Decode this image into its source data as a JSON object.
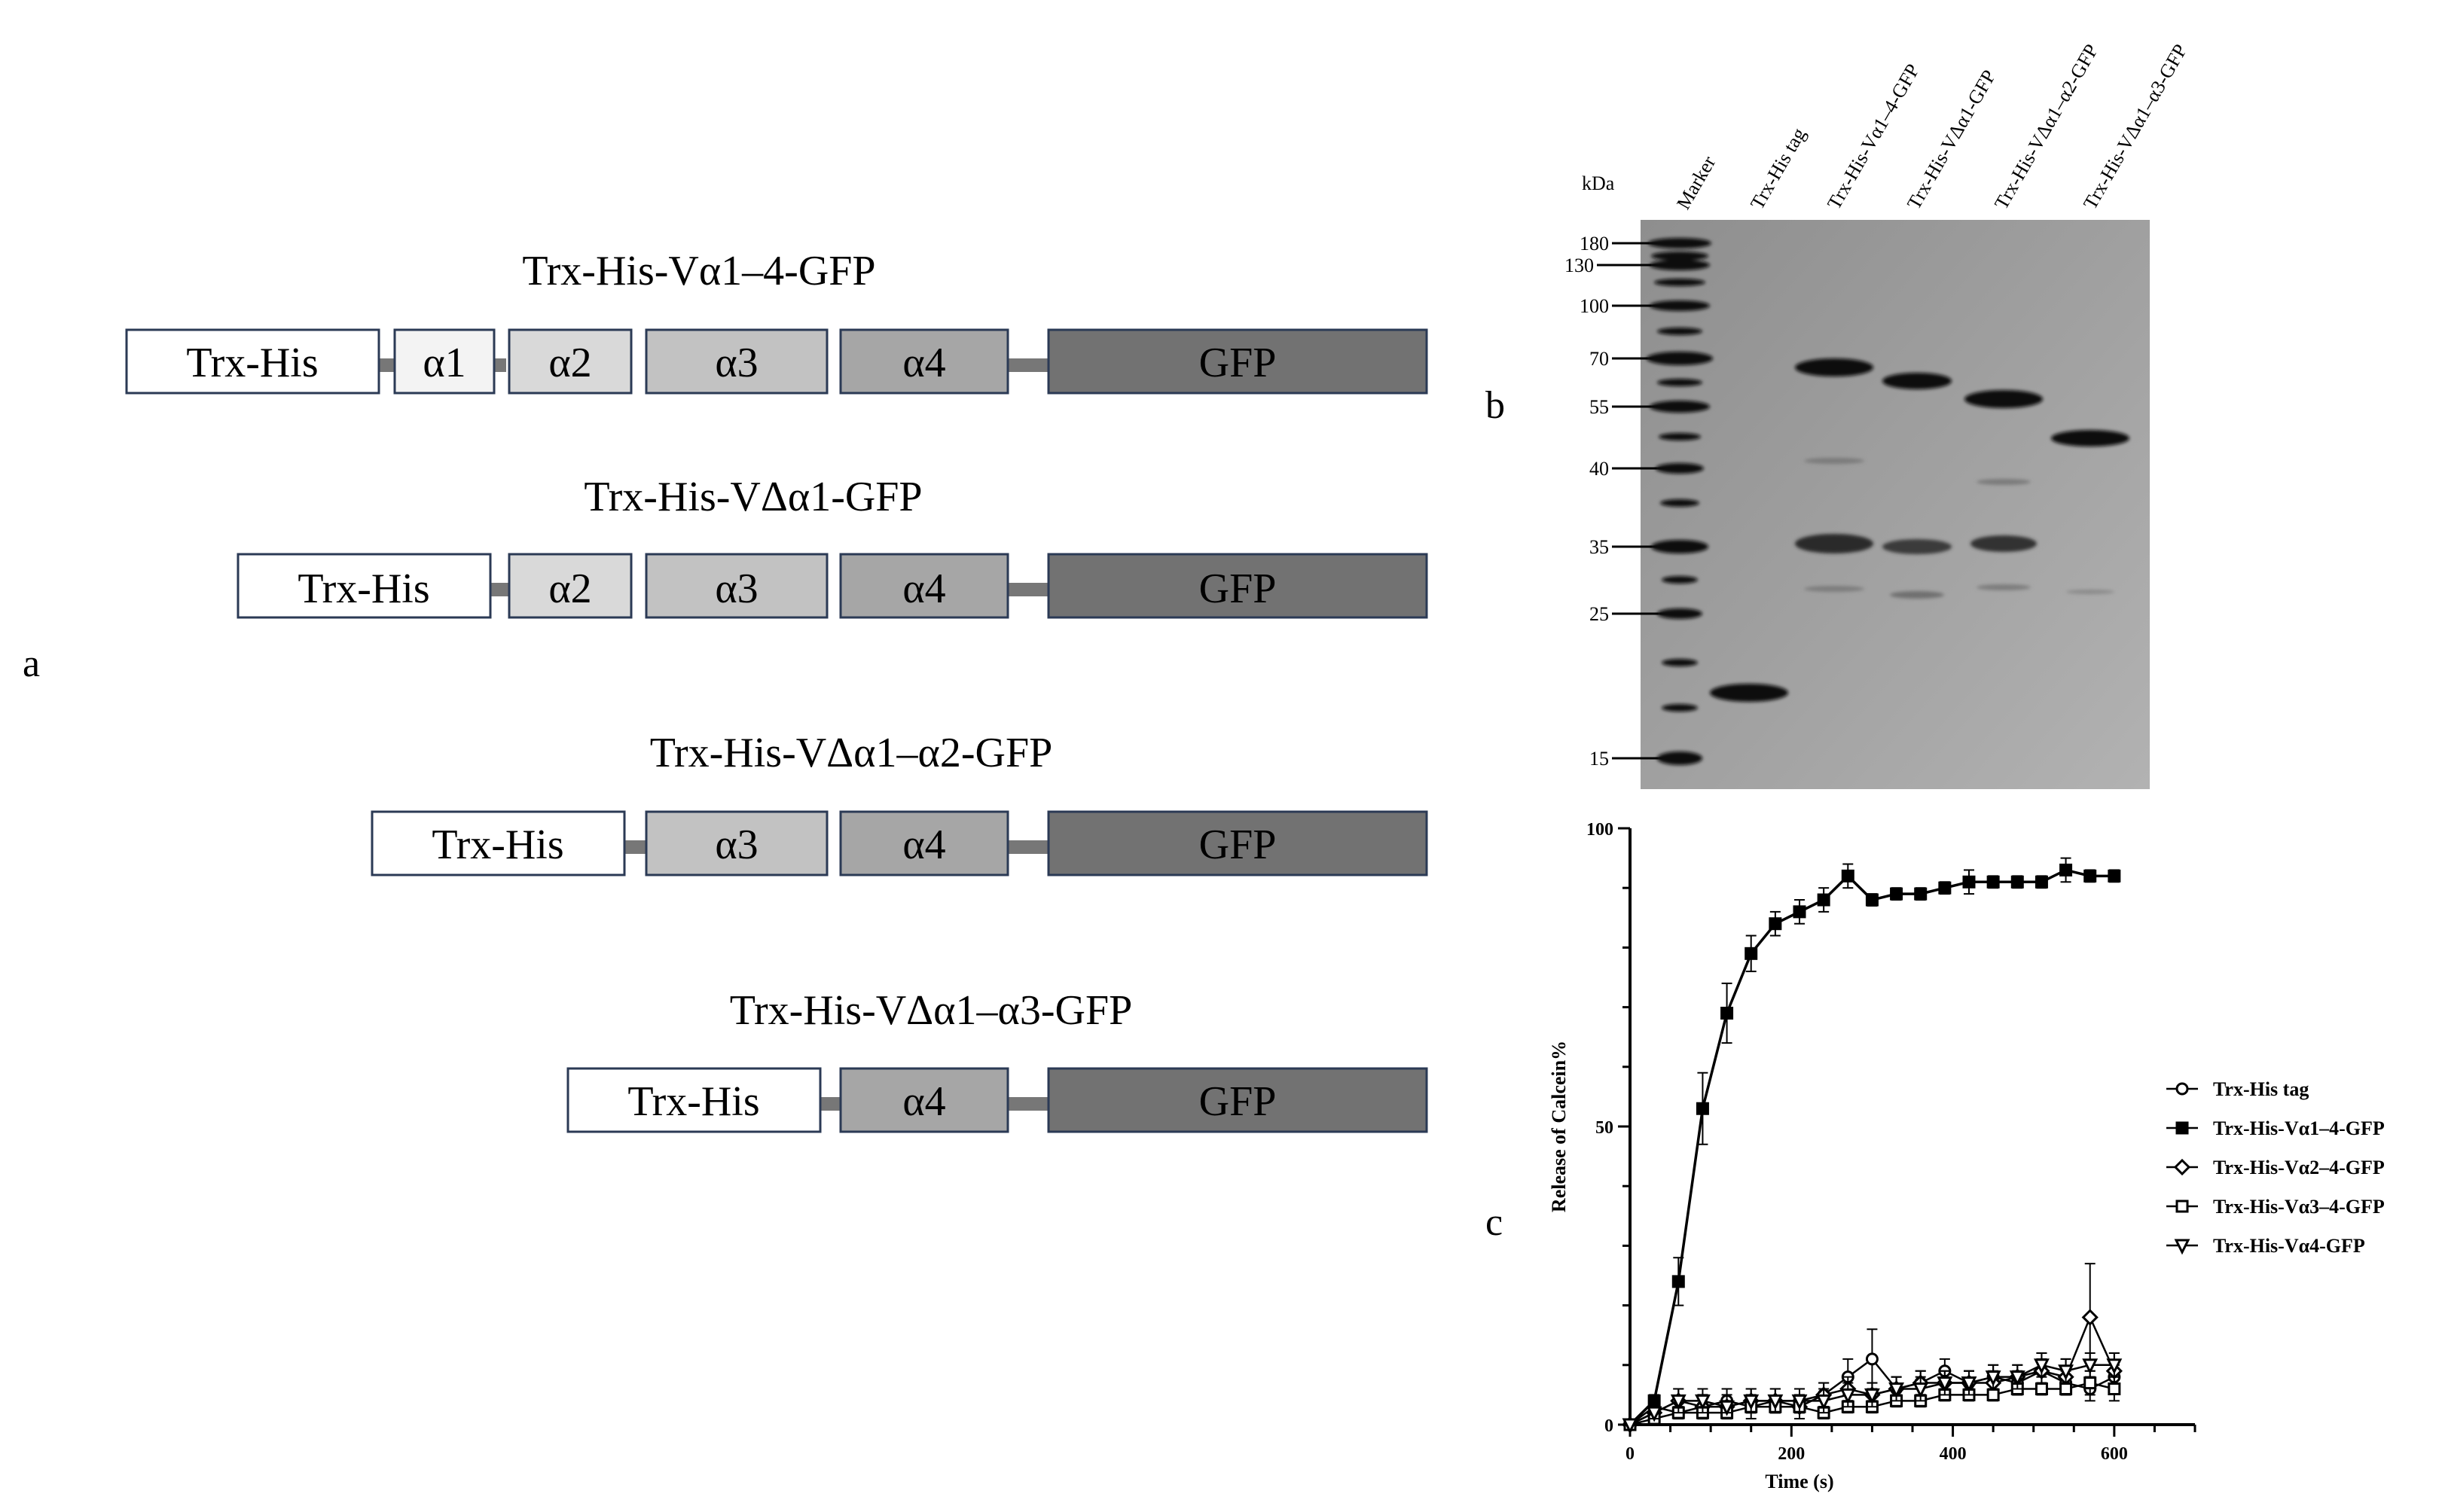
{
  "panel_a": {
    "letter": "a",
    "constructs": [
      {
        "title": "Trx-His-Vα1–4-GFP",
        "domains": [
          "Trx-His",
          "α1",
          "α2",
          "α3",
          "α4",
          "GFP"
        ]
      },
      {
        "title": "Trx-His-VΔα1-GFP",
        "domains": [
          "Trx-His",
          "α2",
          "α3",
          "α4",
          "GFP"
        ]
      },
      {
        "title": "Trx-His-VΔα1–α2-GFP",
        "domains": [
          "Trx-His",
          "α3",
          "α4",
          "GFP"
        ]
      },
      {
        "title": "Trx-His-VΔα1–α3-GFP",
        "domains": [
          "Trx-His",
          "α4",
          "GFP"
        ]
      }
    ],
    "colors": {
      "Trx-His": "#ffffff",
      "α1": "#f3f3f3",
      "α2": "#d9d9d9",
      "α3": "#c2c2c2",
      "α4": "#a6a6a6",
      "GFP": "#727272",
      "linker": "#777777"
    }
  },
  "panel_b": {
    "letter": "b",
    "unit": "kDa",
    "lanes": [
      "Marker",
      "Trx-His tag",
      "Trx-His-Vα1–4-GFP",
      "Trx-His-VΔα1-GFP",
      "Trx-His-VΔα1–α2-GFP",
      "Trx-His-VΔα1–α3-GFP"
    ],
    "marker_kda": [
      "180",
      "130",
      "100",
      "70",
      "55",
      "40",
      "35",
      "25",
      "15"
    ]
  },
  "panel_c": {
    "letter": "c",
    "chart_data": {
      "type": "line",
      "xlabel": "Time (s)",
      "ylabel": "Release of Calcein%",
      "xlim": [
        0,
        700
      ],
      "ylim": [
        0,
        100
      ],
      "xticks": [
        "0",
        "200",
        "400",
        "600"
      ],
      "yticks": [
        "0",
        "50",
        "100"
      ],
      "legend_position": "right",
      "series": [
        {
          "name": "Trx-His tag",
          "marker": "open-circle",
          "x": [
            0,
            30,
            60,
            90,
            120,
            150,
            180,
            210,
            240,
            270,
            300,
            330,
            360,
            390,
            420,
            450,
            480,
            510,
            540,
            570,
            600
          ],
          "y": [
            0,
            3,
            2,
            3,
            4,
            3,
            4,
            4,
            5,
            8,
            11,
            6,
            7,
            9,
            7,
            8,
            7,
            9,
            7,
            6,
            8
          ],
          "err": [
            0,
            1,
            1,
            2,
            2,
            2,
            2,
            2,
            2,
            3,
            5,
            2,
            2,
            2,
            2,
            2,
            2,
            2,
            2,
            2,
            2
          ]
        },
        {
          "name": "Trx-His-Vα1–4-GFP",
          "marker": "filled-square",
          "x": [
            0,
            30,
            60,
            90,
            120,
            150,
            180,
            210,
            240,
            270,
            300,
            330,
            360,
            390,
            420,
            450,
            480,
            510,
            540,
            570,
            600
          ],
          "y": [
            0,
            4,
            24,
            53,
            69,
            79,
            84,
            86,
            88,
            92,
            88,
            89,
            89,
            90,
            91,
            91,
            91,
            91,
            93,
            92,
            92
          ],
          "err": [
            0,
            1,
            4,
            6,
            5,
            3,
            2,
            2,
            2,
            2,
            1,
            1,
            1,
            1,
            2,
            1,
            1,
            1,
            2,
            1,
            1
          ]
        },
        {
          "name": "Trx-His-Vα2–4-GFP",
          "marker": "open-diamond",
          "x": [
            0,
            30,
            60,
            90,
            120,
            150,
            180,
            210,
            240,
            270,
            300,
            330,
            360,
            390,
            420,
            450,
            480,
            510,
            540,
            570,
            600
          ],
          "y": [
            0,
            2,
            4,
            3,
            3,
            4,
            4,
            3,
            5,
            6,
            5,
            6,
            7,
            7,
            7,
            7,
            8,
            9,
            8,
            18,
            9
          ],
          "err": [
            0,
            1,
            2,
            2,
            2,
            2,
            2,
            2,
            2,
            2,
            2,
            2,
            2,
            2,
            2,
            2,
            2,
            3,
            3,
            9,
            3
          ]
        },
        {
          "name": "Trx-His-Vα3–4-GFP",
          "marker": "open-square",
          "x": [
            0,
            30,
            60,
            90,
            120,
            150,
            180,
            210,
            240,
            270,
            300,
            330,
            360,
            390,
            420,
            450,
            480,
            510,
            540,
            570,
            600
          ],
          "y": [
            0,
            1,
            2,
            2,
            2,
            3,
            3,
            3,
            2,
            3,
            3,
            4,
            4,
            5,
            5,
            5,
            6,
            6,
            6,
            7,
            6
          ],
          "err": [
            0,
            1,
            1,
            1,
            1,
            1,
            1,
            1,
            1,
            1,
            1,
            1,
            1,
            1,
            1,
            1,
            1,
            1,
            1,
            2,
            2
          ]
        },
        {
          "name": "Trx-His-Vα4-GFP",
          "marker": "open-triangle-down",
          "x": [
            0,
            30,
            60,
            90,
            120,
            150,
            180,
            210,
            240,
            270,
            300,
            330,
            360,
            390,
            420,
            450,
            480,
            510,
            540,
            570,
            600
          ],
          "y": [
            0,
            2,
            4,
            4,
            3,
            4,
            4,
            4,
            4,
            5,
            5,
            6,
            6,
            7,
            7,
            8,
            8,
            10,
            9,
            10,
            10
          ],
          "err": [
            0,
            1,
            2,
            2,
            1,
            2,
            2,
            2,
            2,
            2,
            2,
            2,
            2,
            2,
            2,
            2,
            2,
            2,
            2,
            2,
            2
          ]
        }
      ]
    }
  }
}
